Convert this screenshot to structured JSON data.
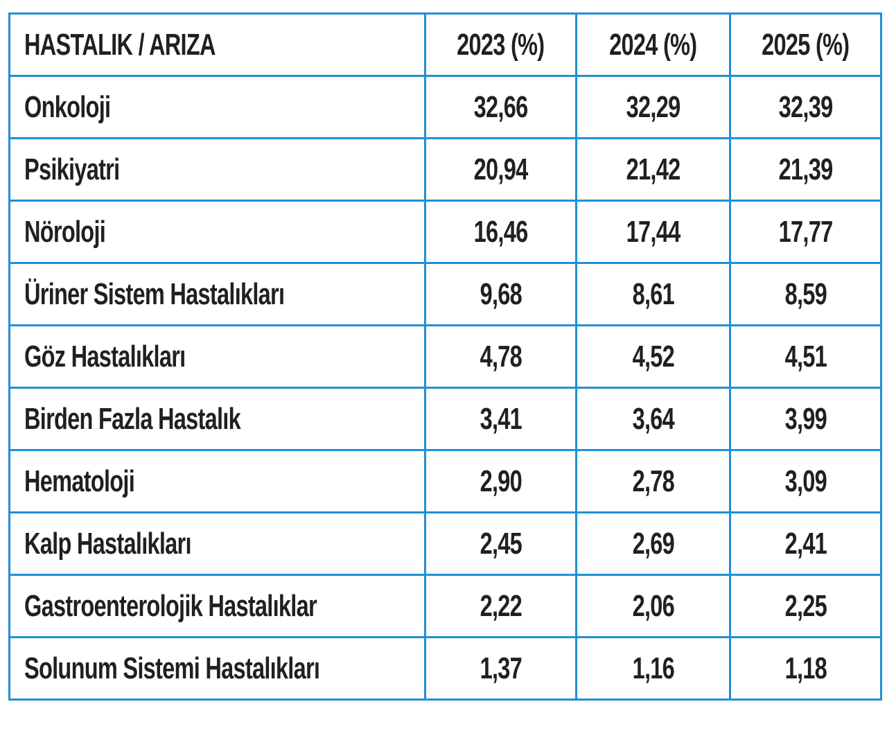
{
  "table": {
    "header": [
      "HASTALIK / ARIZA",
      "2023 (%)",
      "2024 (%)",
      "2025 (%)"
    ],
    "rows": [
      [
        "Onkoloji",
        "32,66",
        "32,29",
        "32,39"
      ],
      [
        "Psikiyatri",
        "20,94",
        "21,42",
        "21,39"
      ],
      [
        "Nöroloji",
        "16,46",
        "17,44",
        "17,77"
      ],
      [
        "Üriner Sistem Hastalıkları",
        "9,68",
        "8,61",
        "8,59"
      ],
      [
        "Göz Hastalıkları",
        "4,78",
        "4,52",
        "4,51"
      ],
      [
        "Birden Fazla Hastalık",
        "3,41",
        "3,64",
        "3,99"
      ],
      [
        "Hematoloji",
        "2,90",
        "2,78",
        "3,09"
      ],
      [
        "Kalp Hastalıkları",
        "2,45",
        "2,69",
        "2,41"
      ],
      [
        "Gastroenterolojik Hastalıklar",
        "2,22",
        "2,06",
        "2,25"
      ],
      [
        "Solunum Sistemi Hastalıkları",
        "1,37",
        "1,16",
        "1,18"
      ]
    ]
  }
}
